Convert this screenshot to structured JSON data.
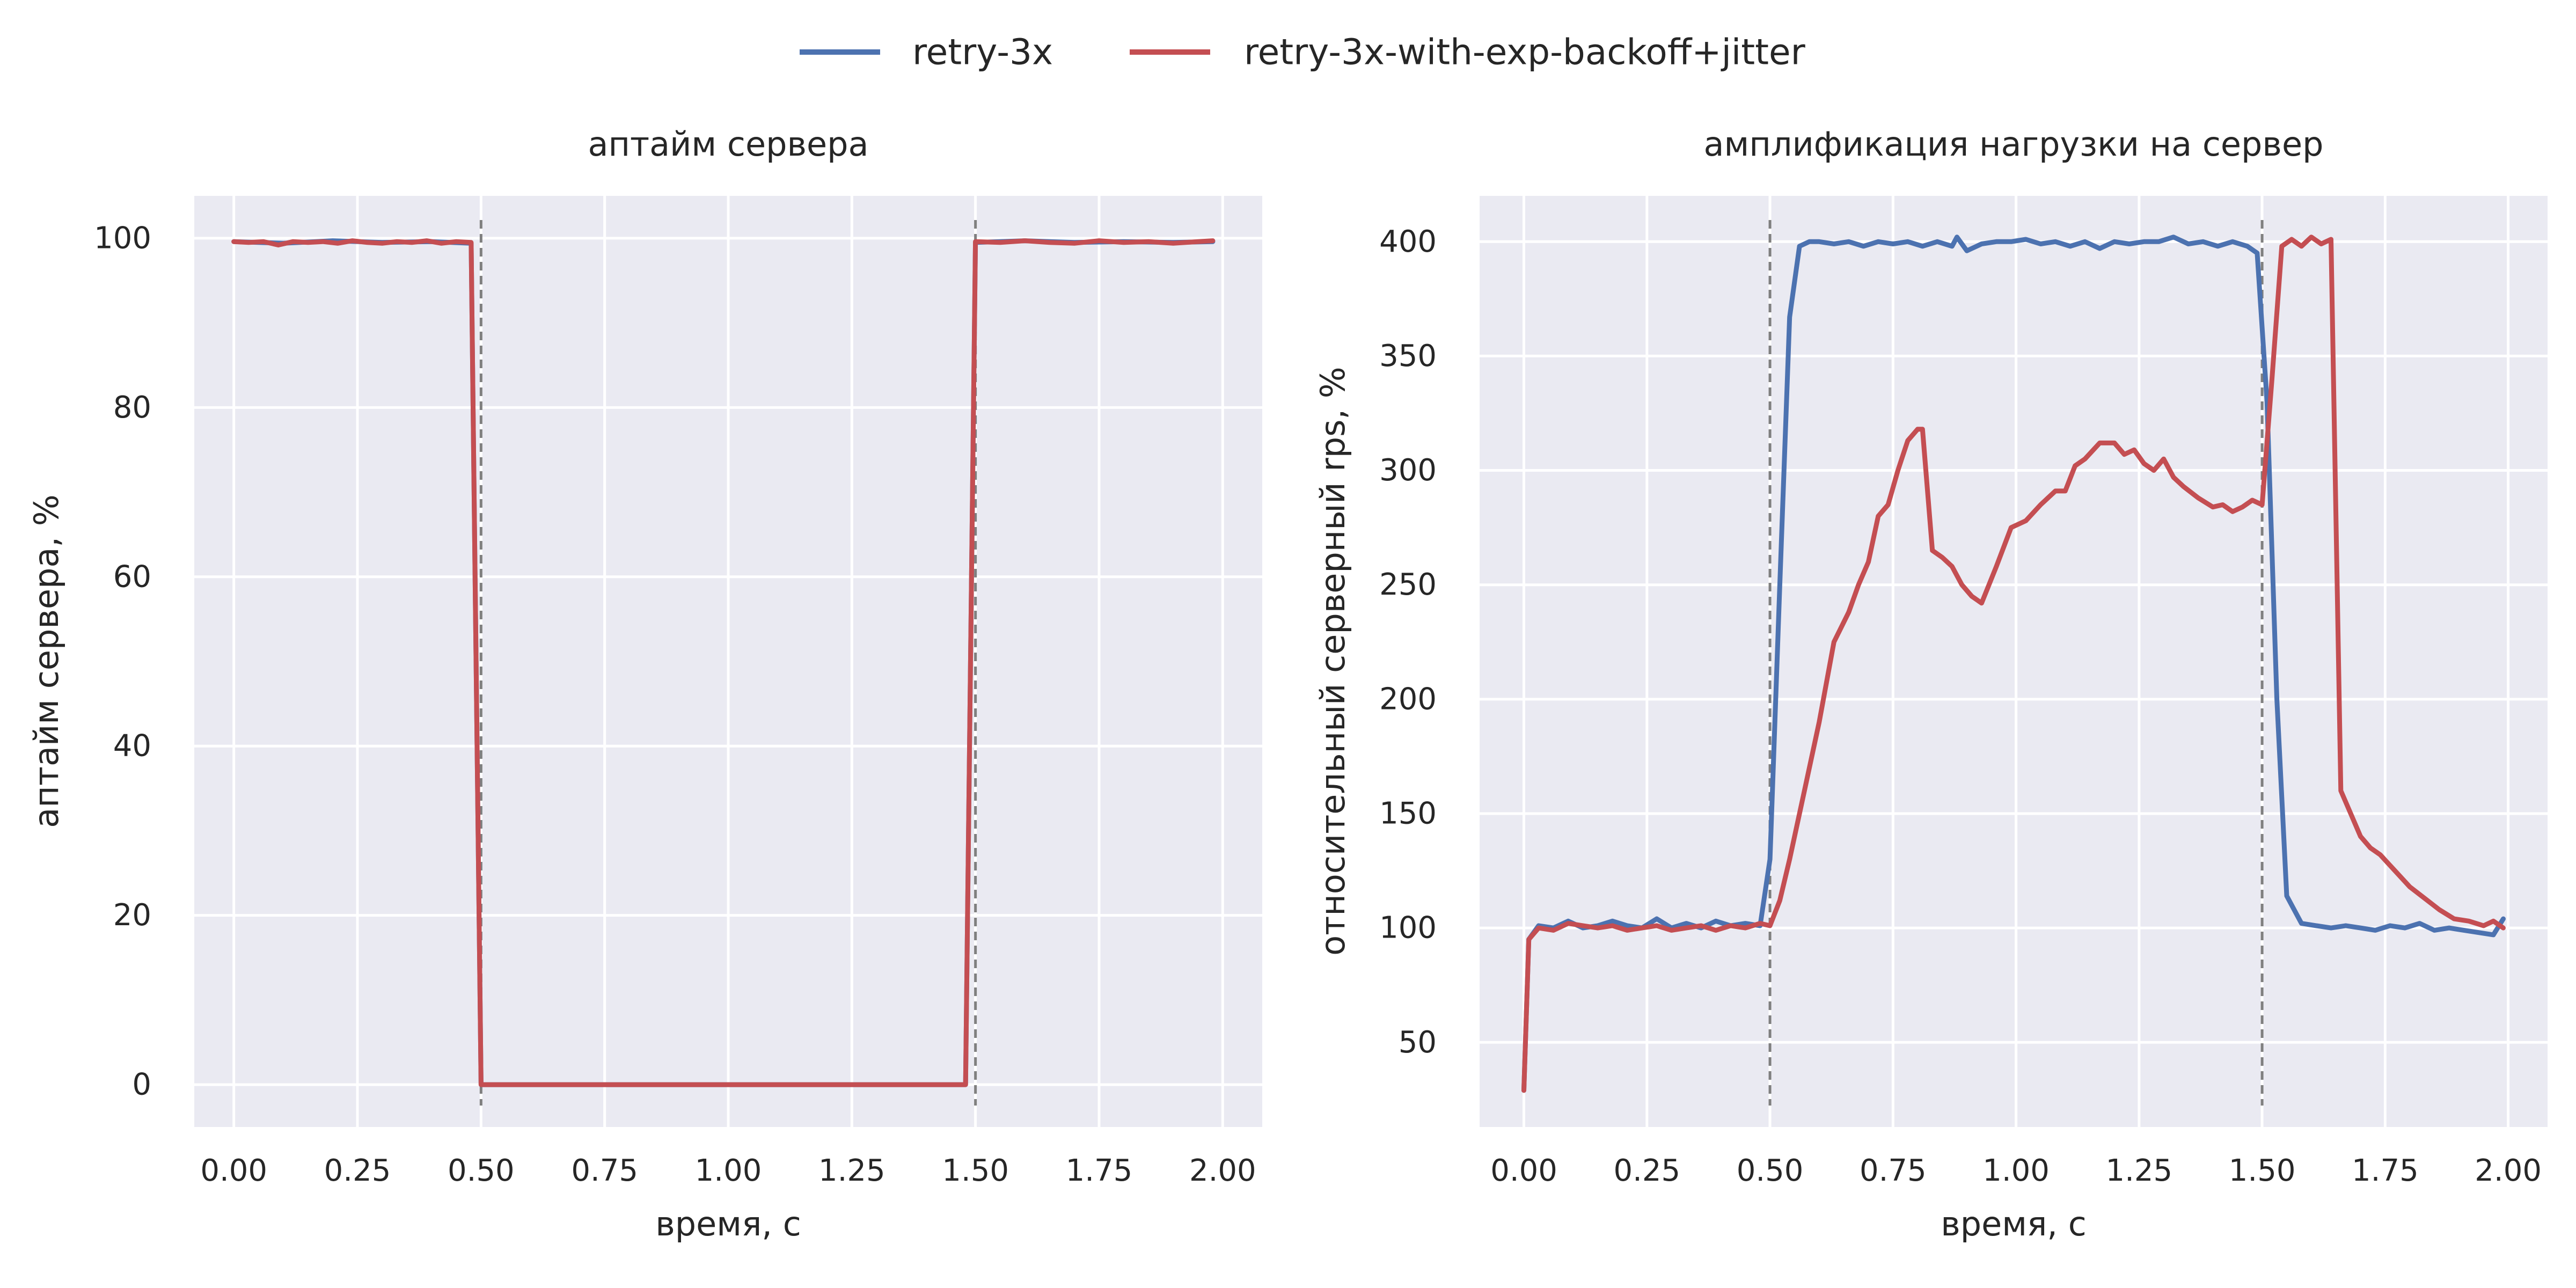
{
  "legend": {
    "placement": "top-center",
    "entries": [
      {
        "name": "retry-3x",
        "color": "#4c72b0"
      },
      {
        "name": "retry-3x-with-exp-backoff+jitter",
        "color": "#c44e52"
      }
    ]
  },
  "chart_data": [
    {
      "type": "line",
      "title": "аптайм сервера",
      "xlabel": "время, с",
      "ylabel": "аптайм сервера, %",
      "xlim": [
        -0.08,
        2.08
      ],
      "ylim": [
        -5,
        105
      ],
      "xticks": [
        "0.00",
        "0.25",
        "0.50",
        "0.75",
        "1.00",
        "1.25",
        "1.50",
        "1.75",
        "2.00"
      ],
      "yticks": [
        "0",
        "20",
        "40",
        "60",
        "80",
        "100"
      ],
      "grid": true,
      "vlines": [
        0.5,
        1.5
      ],
      "series": [
        {
          "name": "retry-3x",
          "color": "#4c72b0",
          "x": [
            0.0,
            0.1,
            0.2,
            0.3,
            0.4,
            0.48,
            0.5,
            1.48,
            1.5,
            1.6,
            1.7,
            1.8,
            1.9,
            1.98
          ],
          "y": [
            99.6,
            99.4,
            99.7,
            99.5,
            99.6,
            99.4,
            0,
            0,
            99.5,
            99.7,
            99.5,
            99.6,
            99.5,
            99.6
          ]
        },
        {
          "name": "retry-3x-with-exp-backoff+jitter",
          "color": "#c44e52",
          "x": [
            0.0,
            0.03,
            0.06,
            0.09,
            0.12,
            0.15,
            0.18,
            0.21,
            0.24,
            0.27,
            0.3,
            0.33,
            0.36,
            0.39,
            0.42,
            0.45,
            0.48,
            0.5,
            1.48,
            1.5,
            1.55,
            1.6,
            1.65,
            1.7,
            1.75,
            1.8,
            1.85,
            1.9,
            1.95,
            1.98
          ],
          "y": [
            99.6,
            99.5,
            99.6,
            99.2,
            99.6,
            99.5,
            99.6,
            99.4,
            99.7,
            99.5,
            99.4,
            99.6,
            99.5,
            99.7,
            99.4,
            99.6,
            99.5,
            0,
            0,
            99.6,
            99.5,
            99.7,
            99.5,
            99.4,
            99.7,
            99.5,
            99.6,
            99.4,
            99.6,
            99.7
          ]
        }
      ]
    },
    {
      "type": "line",
      "title": "амплификация нагрузки на сервер",
      "xlabel": "время, с",
      "ylabel": "относительный серверный rps, %",
      "xlim": [
        -0.09,
        2.08
      ],
      "ylim": [
        13,
        420
      ],
      "xticks": [
        "0.00",
        "0.25",
        "0.50",
        "0.75",
        "1.00",
        "1.25",
        "1.50",
        "1.75",
        "2.00"
      ],
      "yticks": [
        "50",
        "100",
        "150",
        "200",
        "250",
        "300",
        "350",
        "400"
      ],
      "grid": true,
      "vlines": [
        0.5,
        1.5
      ],
      "series": [
        {
          "name": "retry-3x",
          "color": "#4c72b0",
          "x": [
            0.0,
            0.01,
            0.03,
            0.06,
            0.09,
            0.12,
            0.15,
            0.18,
            0.21,
            0.24,
            0.27,
            0.3,
            0.33,
            0.36,
            0.39,
            0.42,
            0.45,
            0.48,
            0.5,
            0.52,
            0.54,
            0.56,
            0.58,
            0.6,
            0.63,
            0.66,
            0.69,
            0.72,
            0.75,
            0.78,
            0.81,
            0.84,
            0.87,
            0.88,
            0.9,
            0.93,
            0.96,
            0.99,
            1.02,
            1.05,
            1.08,
            1.11,
            1.14,
            1.17,
            1.2,
            1.23,
            1.26,
            1.29,
            1.32,
            1.35,
            1.38,
            1.41,
            1.44,
            1.47,
            1.49,
            1.51,
            1.53,
            1.55,
            1.58,
            1.61,
            1.64,
            1.67,
            1.7,
            1.73,
            1.76,
            1.79,
            1.82,
            1.85,
            1.88,
            1.91,
            1.94,
            1.97,
            1.99
          ],
          "y": [
            29,
            95,
            101,
            100,
            103,
            100,
            101,
            103,
            101,
            100,
            104,
            100,
            102,
            100,
            103,
            101,
            102,
            101,
            130,
            250,
            367,
            398,
            400,
            400,
            399,
            400,
            398,
            400,
            399,
            400,
            398,
            400,
            398,
            402,
            396,
            399,
            400,
            400,
            401,
            399,
            400,
            398,
            400,
            397,
            400,
            399,
            400,
            400,
            402,
            399,
            400,
            398,
            400,
            398,
            395,
            330,
            200,
            114,
            102,
            101,
            100,
            101,
            100,
            99,
            101,
            100,
            102,
            99,
            100,
            99,
            98,
            97,
            104
          ]
        },
        {
          "name": "retry-3x-with-exp-backoff+jitter",
          "color": "#c44e52",
          "x": [
            0.0,
            0.01,
            0.03,
            0.06,
            0.09,
            0.12,
            0.15,
            0.18,
            0.21,
            0.24,
            0.27,
            0.3,
            0.33,
            0.36,
            0.39,
            0.42,
            0.45,
            0.48,
            0.5,
            0.52,
            0.54,
            0.57,
            0.6,
            0.63,
            0.66,
            0.68,
            0.7,
            0.72,
            0.74,
            0.76,
            0.78,
            0.8,
            0.81,
            0.83,
            0.85,
            0.87,
            0.89,
            0.91,
            0.93,
            0.96,
            0.99,
            1.02,
            1.05,
            1.08,
            1.1,
            1.12,
            1.14,
            1.17,
            1.2,
            1.22,
            1.24,
            1.26,
            1.28,
            1.3,
            1.32,
            1.34,
            1.37,
            1.4,
            1.42,
            1.44,
            1.46,
            1.48,
            1.5,
            1.52,
            1.54,
            1.56,
            1.58,
            1.6,
            1.62,
            1.64,
            1.66,
            1.68,
            1.7,
            1.72,
            1.74,
            1.77,
            1.8,
            1.83,
            1.86,
            1.89,
            1.92,
            1.95,
            1.97,
            1.99
          ],
          "y": [
            29,
            95,
            100,
            99,
            102,
            101,
            100,
            101,
            99,
            100,
            101,
            99,
            100,
            101,
            99,
            101,
            100,
            102,
            101,
            112,
            130,
            160,
            190,
            225,
            238,
            250,
            260,
            280,
            285,
            300,
            313,
            318,
            318,
            265,
            262,
            258,
            250,
            245,
            242,
            258,
            275,
            278,
            285,
            291,
            291,
            302,
            305,
            312,
            312,
            307,
            309,
            303,
            300,
            305,
            297,
            293,
            288,
            284,
            285,
            282,
            284,
            287,
            285,
            340,
            398,
            401,
            398,
            402,
            399,
            401,
            160,
            150,
            140,
            135,
            132,
            125,
            118,
            113,
            108,
            104,
            103,
            101,
            103,
            100
          ]
        }
      ]
    }
  ]
}
